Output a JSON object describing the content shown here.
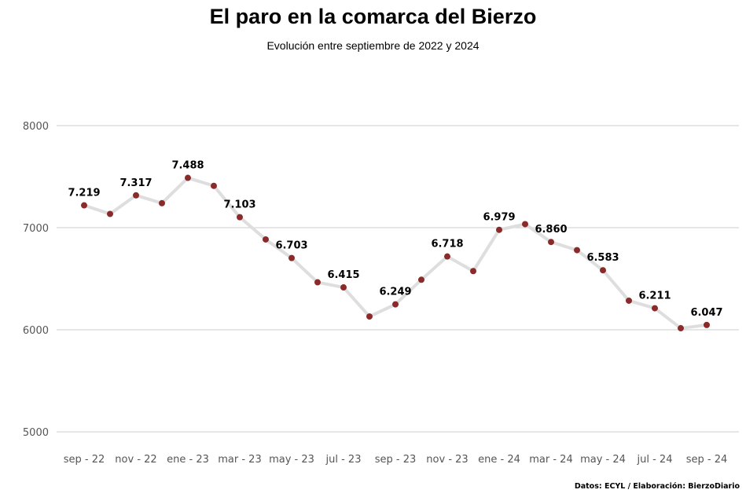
{
  "chart_data": {
    "type": "line",
    "title": "El paro en la comarca del Bierzo",
    "subtitle": "Evolución entre septiembre de 2022 y 2024",
    "source": "Datos: ECYL / Elaboración: BierzoDiario",
    "xlabel": "",
    "ylabel": "",
    "ylim": [
      5000,
      8000
    ],
    "yticks": [
      5000,
      6000,
      7000,
      8000
    ],
    "grid": true,
    "x": [
      "sep - 22",
      "oct - 22",
      "nov - 22",
      "dic - 22",
      "ene - 23",
      "feb - 23",
      "mar - 23",
      "abr - 23",
      "may - 23",
      "jun - 23",
      "jul - 23",
      "ago - 23",
      "sep - 23",
      "oct - 23",
      "nov - 23",
      "dic - 23",
      "ene - 24",
      "feb - 24",
      "mar - 24",
      "abr - 24",
      "may - 24",
      "jun - 24",
      "jul - 24",
      "ago - 24",
      "sep - 24"
    ],
    "xtick_labels": [
      "sep - 22",
      "nov - 22",
      "ene - 23",
      "mar - 23",
      "may - 23",
      "jul - 23",
      "sep - 23",
      "nov - 23",
      "ene - 24",
      "mar - 24",
      "may - 24",
      "jul - 24",
      "sep - 24"
    ],
    "values": [
      7219,
      7135,
      7317,
      7240,
      7488,
      7410,
      7103,
      6885,
      6703,
      6465,
      6415,
      6130,
      6249,
      6490,
      6718,
      6575,
      6979,
      7035,
      6860,
      6780,
      6583,
      6285,
      6211,
      6015,
      6047
    ],
    "data_labels": [
      {
        "index": 0,
        "text": "7.219"
      },
      {
        "index": 2,
        "text": "7.317"
      },
      {
        "index": 4,
        "text": "7.488"
      },
      {
        "index": 6,
        "text": "7.103"
      },
      {
        "index": 8,
        "text": "6.703"
      },
      {
        "index": 10,
        "text": "6.415"
      },
      {
        "index": 12,
        "text": "6.249"
      },
      {
        "index": 14,
        "text": "6.718"
      },
      {
        "index": 16,
        "text": "6.979"
      },
      {
        "index": 18,
        "text": "6.860"
      },
      {
        "index": 20,
        "text": "6.583"
      },
      {
        "index": 22,
        "text": "6.211"
      },
      {
        "index": 24,
        "text": "6.047"
      }
    ],
    "colors": {
      "line": "#dedede",
      "marker": "#8b2a2a",
      "grid": "#cccccc",
      "tick_text": "#555555",
      "label_text": "#000000"
    }
  }
}
